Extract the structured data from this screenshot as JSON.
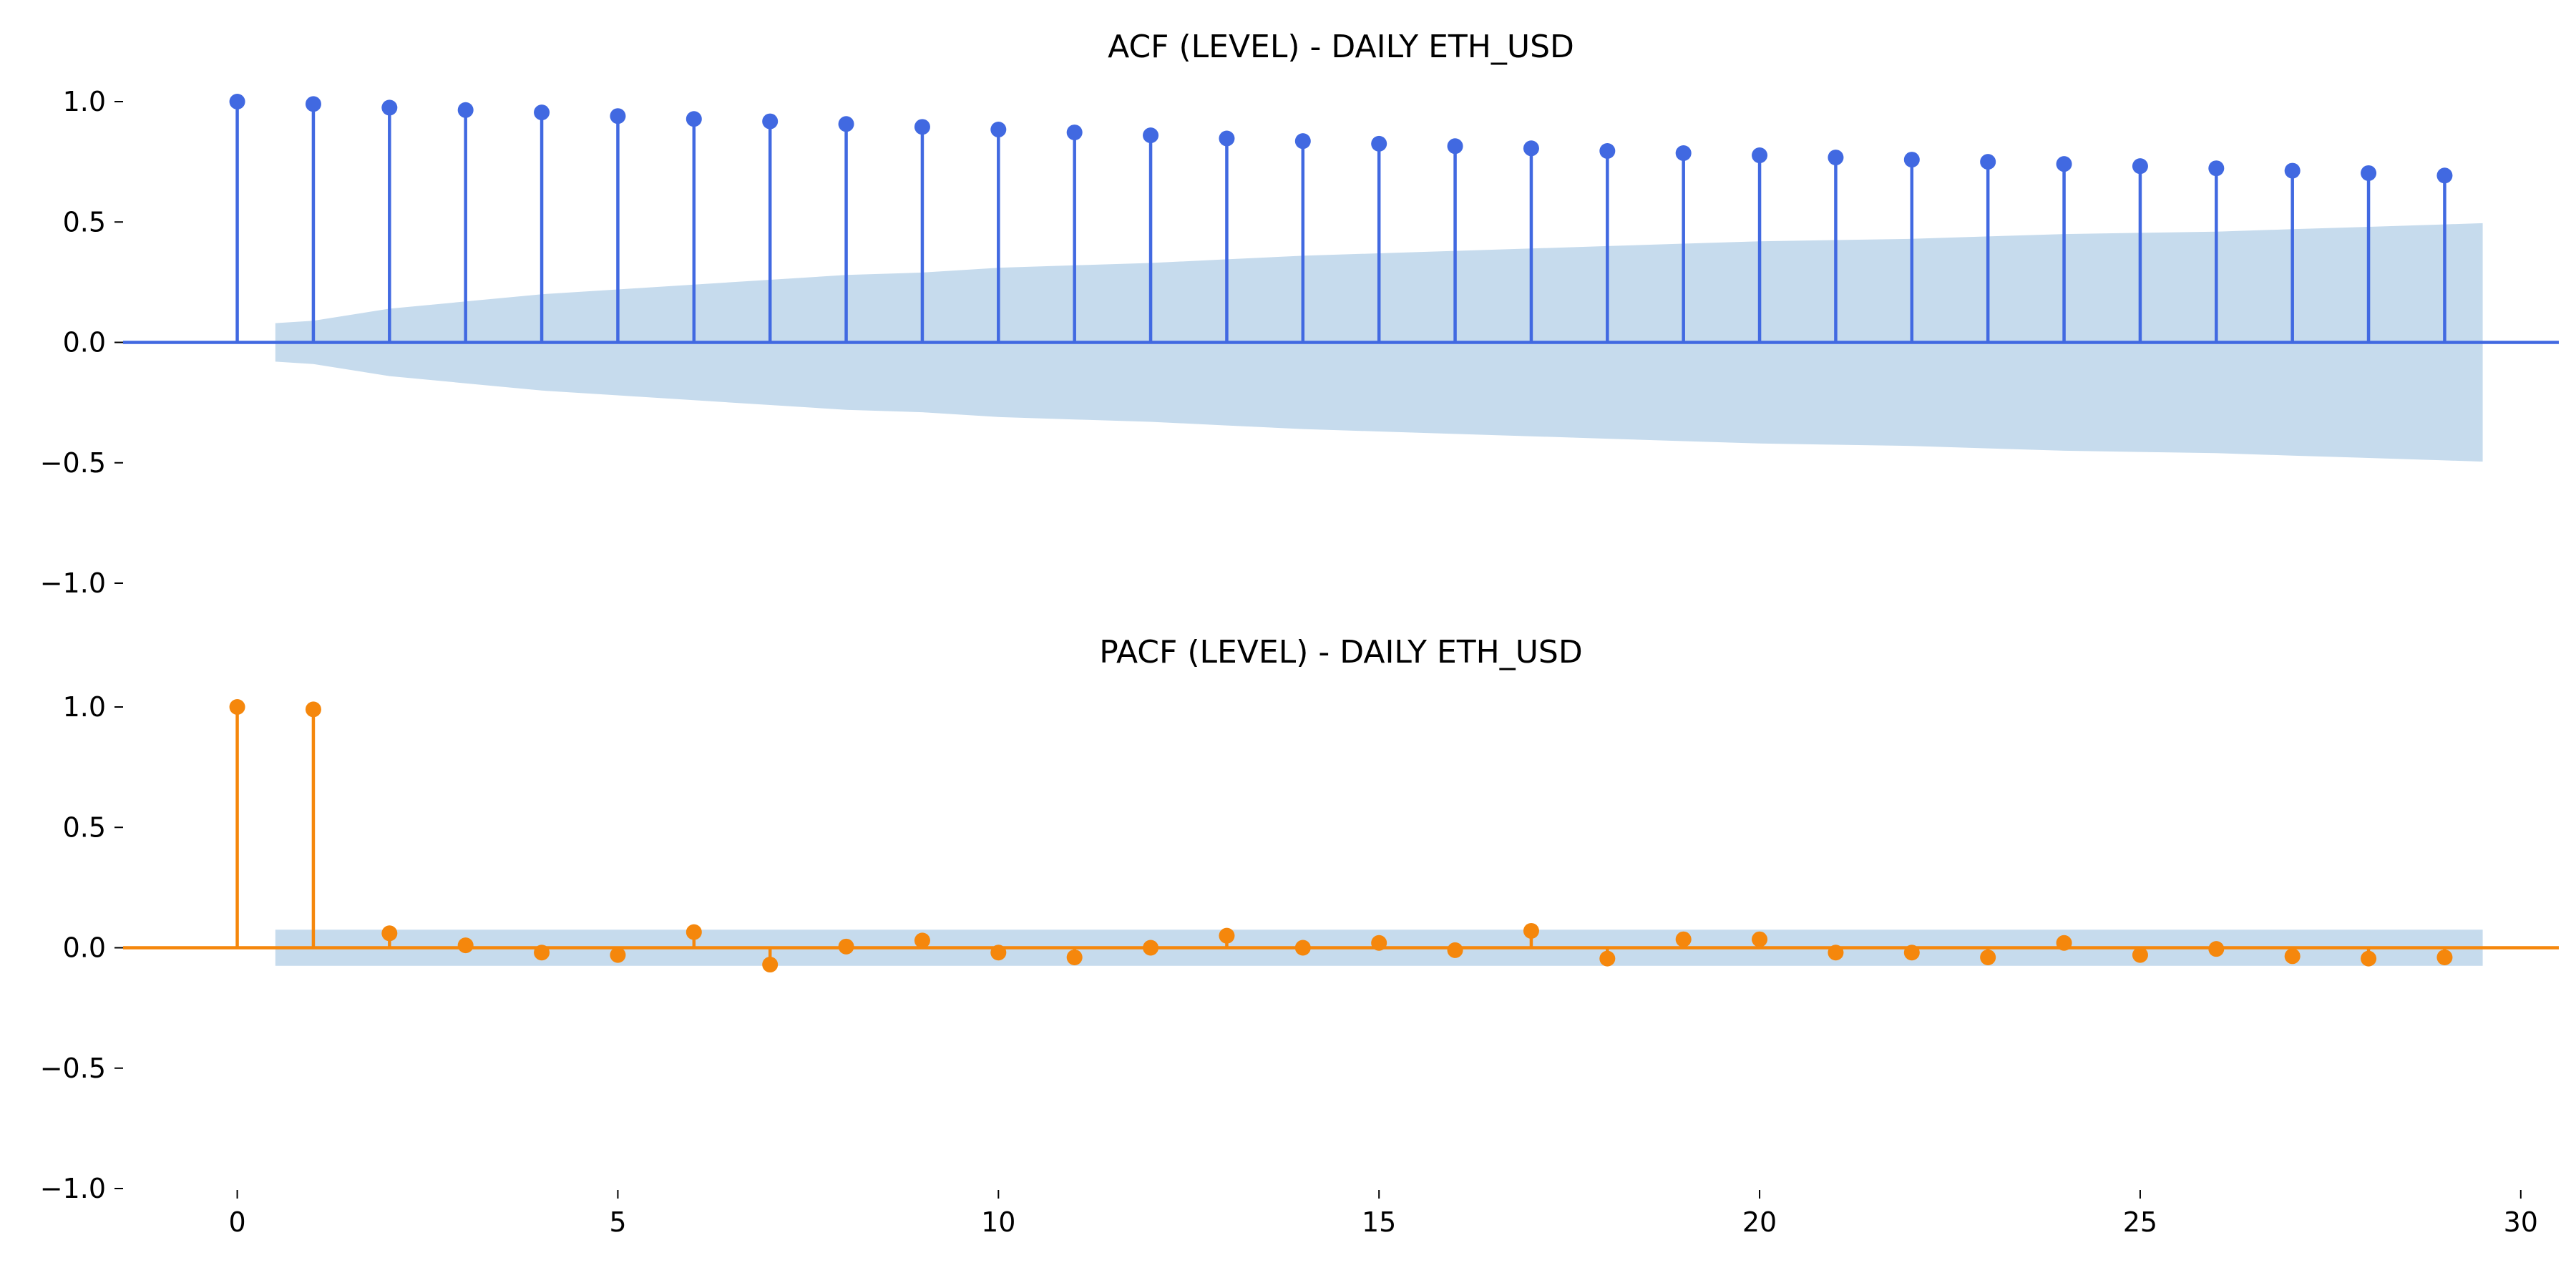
{
  "chart_data": [
    {
      "type": "stem",
      "title": "ACF (LEVEL) - DAILY ETH_USD",
      "xlabel": "",
      "ylabel": "",
      "xlim": [
        -1.5,
        30.5
      ],
      "ylim": [
        -1.0,
        1.0
      ],
      "yticks": [
        "1.0",
        "0.5",
        "0.0",
        "−0.5",
        "−1.0"
      ],
      "ytick_values": [
        1.0,
        0.5,
        0.0,
        -0.5,
        -1.0
      ],
      "grid": false,
      "color": "#4169e1",
      "band_color": "#c6dbed",
      "x": [
        0,
        1,
        2,
        3,
        4,
        5,
        6,
        7,
        8,
        9,
        10,
        11,
        12,
        13,
        14,
        15,
        16,
        17,
        18,
        19,
        20,
        21,
        22,
        23,
        24,
        25,
        26,
        27,
        28,
        29
      ],
      "values": [
        1.0,
        0.99,
        0.975,
        0.965,
        0.955,
        0.94,
        0.928,
        0.918,
        0.907,
        0.895,
        0.884,
        0.872,
        0.86,
        0.847,
        0.836,
        0.825,
        0.815,
        0.806,
        0.795,
        0.786,
        0.777,
        0.768,
        0.759,
        0.75,
        0.741,
        0.732,
        0.723,
        0.713,
        0.703,
        0.693
      ],
      "conf_band": {
        "x": [
          0.5,
          1,
          2,
          3,
          4,
          5,
          6,
          7,
          8,
          9,
          10,
          11,
          12,
          13,
          14,
          15,
          16,
          17,
          18,
          19,
          20,
          21,
          22,
          23,
          24,
          25,
          26,
          27,
          28,
          29,
          29.5
        ],
        "upper": [
          0.08,
          0.09,
          0.14,
          0.17,
          0.2,
          0.22,
          0.24,
          0.26,
          0.28,
          0.29,
          0.31,
          0.32,
          0.33,
          0.345,
          0.36,
          0.37,
          0.38,
          0.39,
          0.4,
          0.41,
          0.42,
          0.425,
          0.43,
          0.44,
          0.45,
          0.455,
          0.46,
          0.47,
          0.48,
          0.49,
          0.495
        ]
      }
    },
    {
      "type": "stem",
      "title": "PACF (LEVEL) - DAILY ETH_USD",
      "xlabel": "",
      "ylabel": "",
      "xlim": [
        -1.5,
        30.5
      ],
      "ylim": [
        -1.0,
        1.0
      ],
      "xticks": [
        "0",
        "5",
        "10",
        "15",
        "20",
        "25",
        "30"
      ],
      "xtick_values": [
        0,
        5,
        10,
        15,
        20,
        25,
        30
      ],
      "yticks": [
        "1.0",
        "0.5",
        "0.0",
        "−0.5",
        "−1.0"
      ],
      "ytick_values": [
        1.0,
        0.5,
        0.0,
        -0.5,
        -1.0
      ],
      "grid": false,
      "color": "#f5870c",
      "band_color": "#c6dbed",
      "x": [
        0,
        1,
        2,
        3,
        4,
        5,
        6,
        7,
        8,
        9,
        10,
        11,
        12,
        13,
        14,
        15,
        16,
        17,
        18,
        19,
        20,
        21,
        22,
        23,
        24,
        25,
        26,
        27,
        28,
        29
      ],
      "values": [
        1.0,
        0.99,
        0.06,
        0.01,
        -0.02,
        -0.03,
        0.065,
        -0.07,
        0.005,
        0.03,
        -0.02,
        -0.04,
        0.0,
        0.05,
        0.0,
        0.02,
        -0.01,
        0.07,
        -0.045,
        0.035,
        0.035,
        -0.02,
        -0.02,
        -0.04,
        0.02,
        -0.03,
        -0.005,
        -0.035,
        -0.045,
        -0.04
      ],
      "conf_band": {
        "x": [
          0.5,
          29.5
        ],
        "upper": [
          0.075,
          0.075
        ]
      }
    }
  ]
}
